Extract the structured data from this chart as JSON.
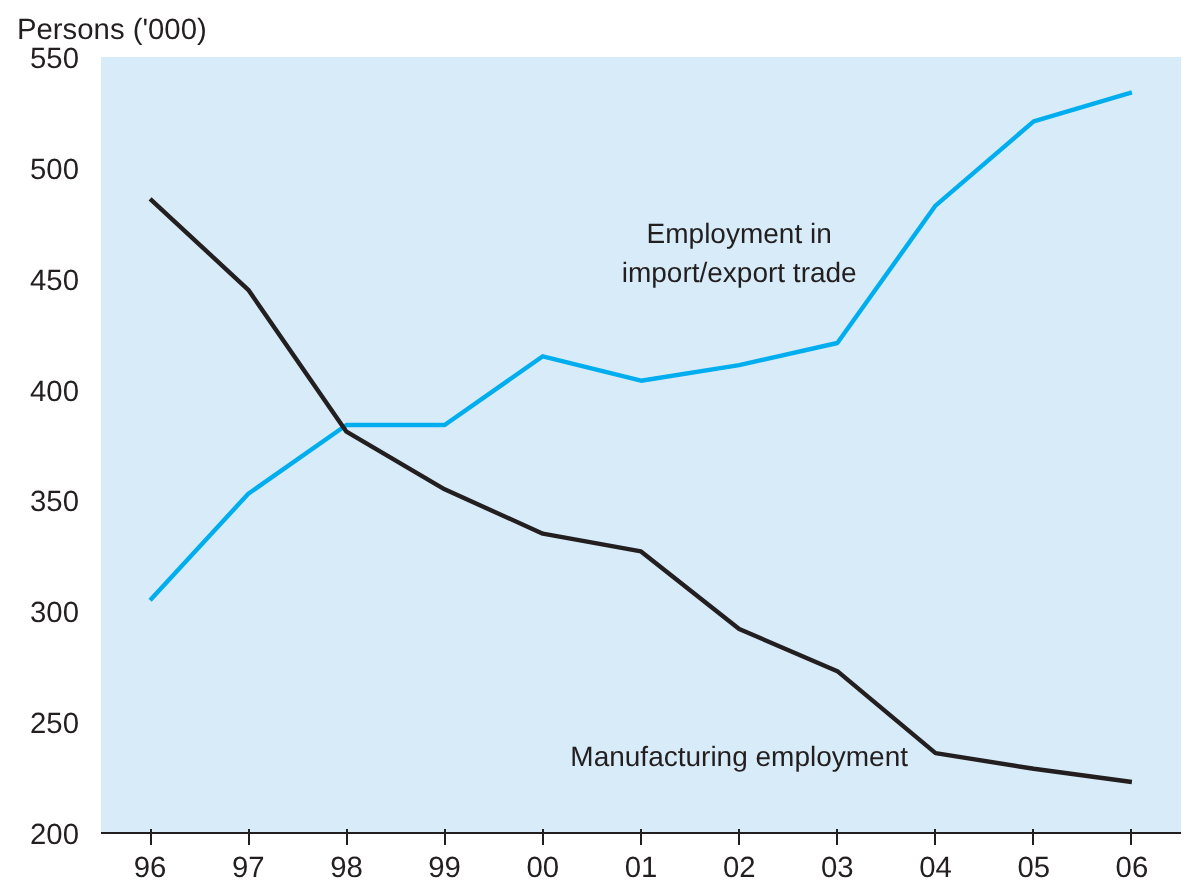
{
  "chart_data": {
    "type": "line",
    "ylabel": "Persons ('000)",
    "categories": [
      "96",
      "97",
      "98",
      "99",
      "00",
      "01",
      "02",
      "03",
      "04",
      "05",
      "06"
    ],
    "ylim": [
      200,
      550
    ],
    "yticks": [
      200,
      250,
      300,
      350,
      400,
      450,
      500,
      550
    ],
    "grid": false,
    "marker": "none",
    "line_style": "solid",
    "series": [
      {
        "name": "Employment in\nimport/export trade",
        "color": "#00aeef",
        "values": [
          305,
          353,
          384,
          384,
          415,
          404,
          411,
          421,
          483,
          521,
          534
        ]
      },
      {
        "name": "Manufacturing employment",
        "color": "#231f20",
        "values": [
          486,
          445,
          381,
          355,
          335,
          327,
          292,
          273,
          236,
          229,
          223
        ]
      }
    ]
  }
}
